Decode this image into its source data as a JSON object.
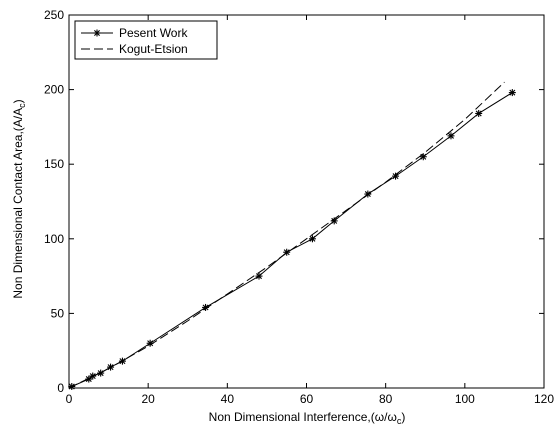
{
  "chart_data": {
    "type": "line",
    "xlabel": {
      "prefix": "Non Dimensional Interference,(",
      "omega": "ω",
      "slash": "/",
      "omega_c": "ω",
      "sub_c": "c",
      "suffix": ")"
    },
    "ylabel": {
      "prefix": "Non Dimensional Contact Area,(A/A",
      "sub_c": "c",
      "suffix": ")"
    },
    "xlim": [
      0,
      120
    ],
    "ylim": [
      0,
      250
    ],
    "xticks": [
      "0",
      "20",
      "40",
      "60",
      "80",
      "100",
      "120"
    ],
    "yticks": [
      "0",
      "50",
      "100",
      "150",
      "200",
      "250"
    ],
    "grid": false,
    "legend_position": "top-left",
    "series": [
      {
        "name": "Pesent Work",
        "style": "solid-asterisk",
        "color": "#000000",
        "x": [
          0.7,
          5,
          6,
          8,
          10.5,
          13.5,
          20.5,
          34.5,
          48,
          55,
          61.5,
          67,
          75.5,
          82.5,
          89.5,
          96.5,
          103.5,
          112
        ],
        "y": [
          1,
          6,
          8,
          10,
          14,
          18,
          30,
          54,
          75,
          91,
          100,
          112,
          130,
          142,
          155,
          169,
          184,
          198
        ]
      },
      {
        "name": "Kogut-Etsion",
        "style": "dashed",
        "color": "#000000",
        "x": [
          0,
          10,
          20,
          30,
          40,
          50,
          60,
          70,
          80,
          90,
          100,
          110
        ],
        "y": [
          0,
          13,
          28,
          45,
          63,
          81,
          100,
          119,
          138,
          158,
          180,
          205
        ]
      }
    ]
  }
}
